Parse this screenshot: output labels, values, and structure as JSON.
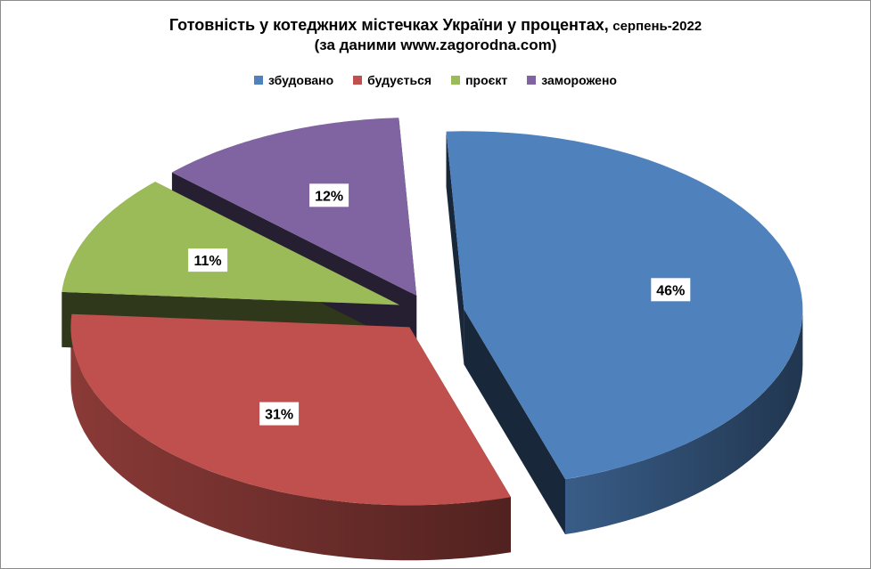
{
  "chart_data": {
    "type": "pie",
    "title": "Готовність у котеджних містечках України у процентах,",
    "title_suffix": "серпень-2022",
    "subtitle": "(за даними www.zagorodna.com)",
    "legend_position": "top",
    "style": "3d-exploded",
    "categories": [
      "збудовано",
      "будується",
      "проєкт",
      "заморожено"
    ],
    "values": [
      46,
      31,
      11,
      12
    ],
    "data_labels": [
      "46%",
      "31%",
      "11%",
      "12%"
    ],
    "colors": [
      "#4f81bd",
      "#c0504d",
      "#9bbb59",
      "#8064a2"
    ]
  }
}
